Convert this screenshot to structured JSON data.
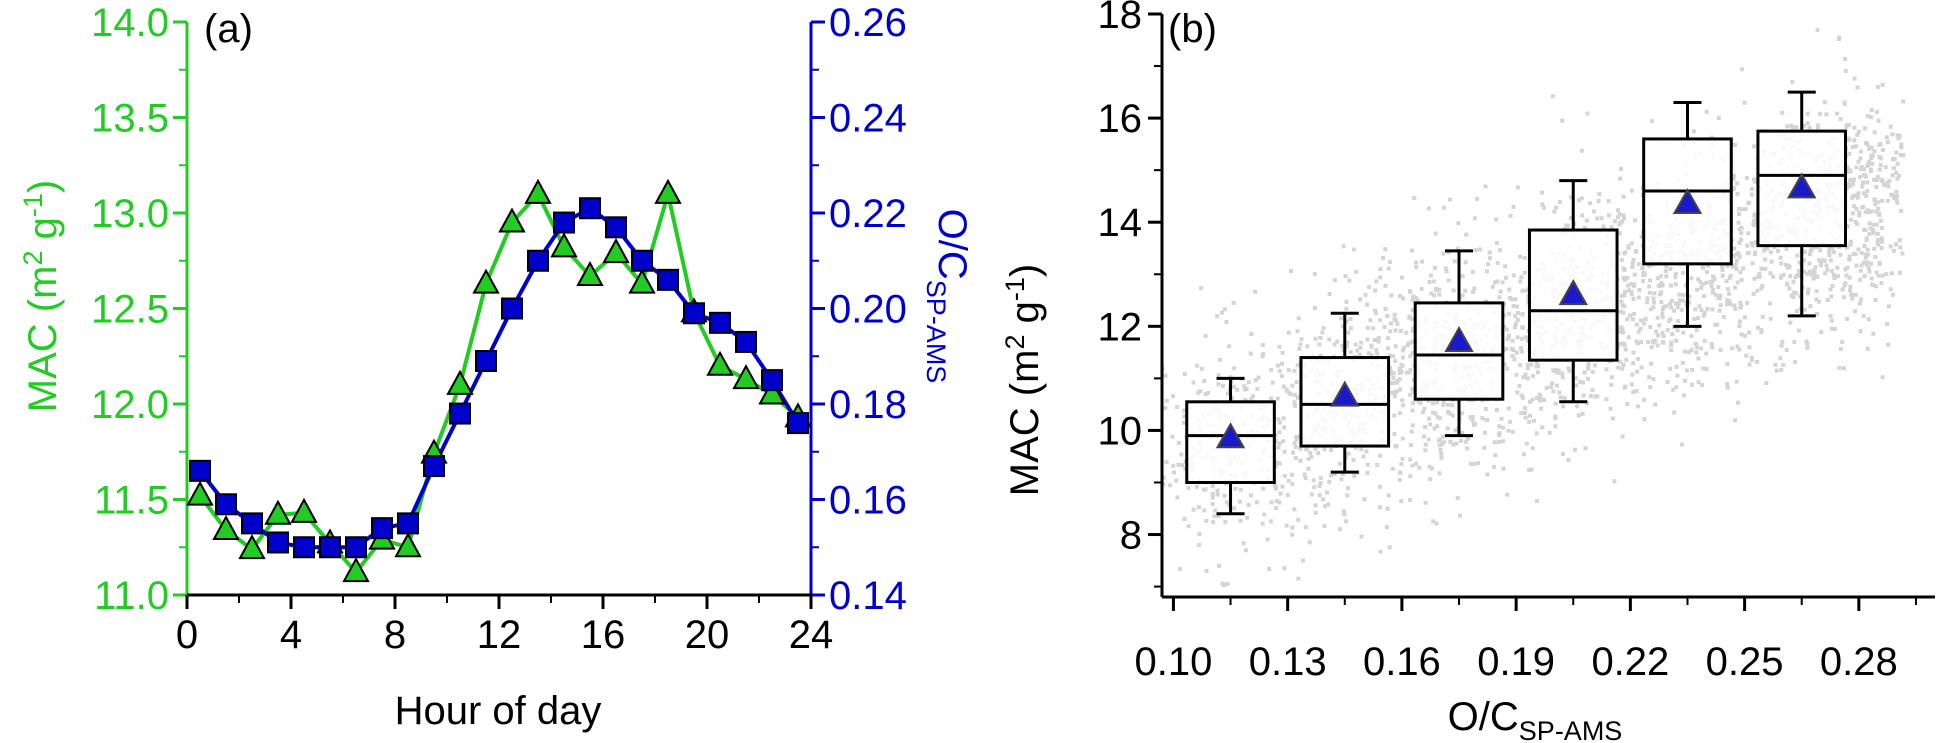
{
  "chart_data": [
    {
      "panel": "(a)",
      "type": "line",
      "xlabel": "Hour of day",
      "xlim": [
        0,
        24
      ],
      "x_ticks": [
        "0",
        "4",
        "8",
        "12",
        "16",
        "20",
        "24"
      ],
      "x_tick_values": [
        0,
        4,
        8,
        12,
        16,
        20,
        24
      ],
      "ylabel_left": "MAC (m² g⁻¹)",
      "ylabel_left_parts": {
        "main": "MAC (m",
        "sup1": "2",
        "mid": " g",
        "sup2": "-1",
        "end": ")"
      },
      "ylim_left": [
        11.0,
        14.0
      ],
      "y_left_ticks": [
        "11.0",
        "11.5",
        "12.0",
        "12.5",
        "13.0",
        "13.5",
        "14.0"
      ],
      "y_left_tick_values": [
        11.0,
        11.5,
        12.0,
        12.5,
        13.0,
        13.5,
        14.0
      ],
      "ylabel_right": "O/CSP-AMS",
      "ylabel_right_parts": {
        "main": "O/C",
        "sub": "SP-AMS"
      },
      "ylim_right": [
        0.14,
        0.26
      ],
      "y_right_ticks": [
        "0.14",
        "0.16",
        "0.18",
        "0.20",
        "0.22",
        "0.24",
        "0.26"
      ],
      "y_right_tick_values": [
        0.14,
        0.16,
        0.18,
        0.2,
        0.22,
        0.24,
        0.26
      ],
      "colors": {
        "mac": "#22cc22",
        "oc": "#0000cc"
      },
      "x": [
        0.5,
        1.5,
        2.5,
        3.5,
        4.5,
        5.5,
        6.5,
        7.5,
        8.5,
        9.5,
        10.5,
        11.5,
        12.5,
        13.5,
        14.5,
        15.5,
        16.5,
        17.5,
        18.5,
        19.5,
        20.5,
        21.5,
        22.5,
        23.5
      ],
      "series": [
        {
          "key": "mac",
          "axis": "left",
          "marker": "triangle",
          "values": [
            11.52,
            11.34,
            11.24,
            11.42,
            11.43,
            11.27,
            11.12,
            11.29,
            11.25,
            11.74,
            12.1,
            12.63,
            12.95,
            13.1,
            12.82,
            12.67,
            12.79,
            12.63,
            13.1,
            12.48,
            12.2,
            12.13,
            12.05,
            11.93
          ]
        },
        {
          "key": "oc",
          "axis": "right",
          "marker": "square",
          "values": [
            0.166,
            0.159,
            0.155,
            0.151,
            0.15,
            0.15,
            0.15,
            0.154,
            0.155,
            0.167,
            0.178,
            0.189,
            0.2,
            0.21,
            0.218,
            0.221,
            0.217,
            0.21,
            0.206,
            0.199,
            0.197,
            0.193,
            0.185,
            0.176
          ]
        }
      ]
    },
    {
      "panel": "(b)",
      "type": "box",
      "xlabel": "O/CSP-AMS",
      "xlabel_parts": {
        "main": "O/C",
        "sub": "SP-AMS"
      },
      "xlim": [
        0.097,
        0.3
      ],
      "x_ticks": [
        "0.10",
        "0.13",
        "0.16",
        "0.19",
        "0.22",
        "0.25",
        "0.28"
      ],
      "x_tick_values": [
        0.1,
        0.13,
        0.16,
        0.19,
        0.22,
        0.25,
        0.28
      ],
      "ylabel": "MAC (m² g⁻¹)",
      "ylabel_parts": {
        "main": "MAC (m",
        "sup1": "2",
        "mid": " g",
        "sup2": "-1",
        "end": ")"
      },
      "ylim": [
        6.8,
        18
      ],
      "y_ticks": [
        "8",
        "10",
        "12",
        "14",
        "16",
        "18"
      ],
      "y_tick_values": [
        8,
        10,
        12,
        14,
        16,
        18
      ],
      "colors": {
        "mean_marker": "#1a1acc",
        "scatter": "#d4d4d4"
      },
      "boxes": [
        {
          "x": 0.115,
          "whisker_low": 8.4,
          "q1": 9.0,
          "median": 9.9,
          "q3": 10.55,
          "whisker_high": 11.0,
          "mean": 9.85
        },
        {
          "x": 0.145,
          "whisker_low": 9.2,
          "q1": 9.7,
          "median": 10.5,
          "q3": 11.4,
          "whisker_high": 12.25,
          "mean": 10.65
        },
        {
          "x": 0.175,
          "whisker_low": 9.9,
          "q1": 10.6,
          "median": 11.45,
          "q3": 12.45,
          "whisker_high": 13.45,
          "mean": 11.7
        },
        {
          "x": 0.205,
          "whisker_low": 10.55,
          "q1": 11.35,
          "median": 12.3,
          "q3": 13.85,
          "whisker_high": 14.8,
          "mean": 12.6
        },
        {
          "x": 0.235,
          "whisker_low": 12.0,
          "q1": 13.2,
          "median": 14.6,
          "q3": 15.6,
          "whisker_high": 16.3,
          "mean": 14.35
        },
        {
          "x": 0.265,
          "whisker_low": 12.2,
          "q1": 13.55,
          "median": 14.9,
          "q3": 15.75,
          "whisker_high": 16.5,
          "mean": 14.65
        }
      ]
    }
  ]
}
